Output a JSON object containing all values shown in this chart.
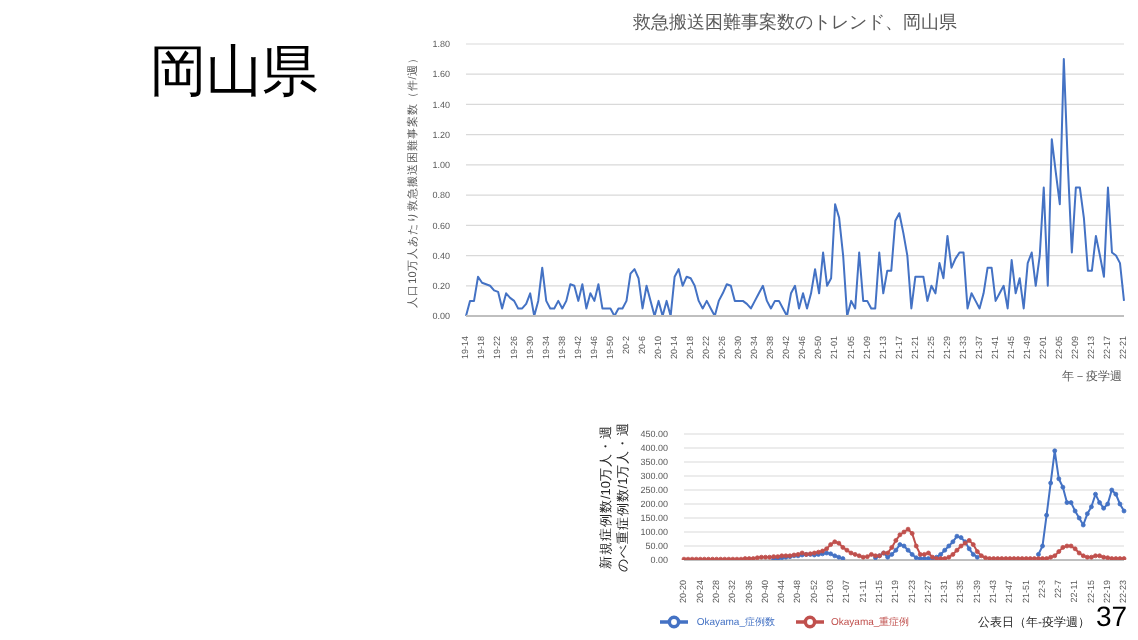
{
  "chart_data": [
    {
      "type": "line",
      "title": "救急搬送困難事案数のトレンド、岡山県",
      "xlabel": "年－疫学週",
      "ylabel": "人口10万人あたり救急搬送困難事案数（件/週）",
      "annotations": [
        "岡山県"
      ],
      "categories": [
        "19-14",
        null,
        null,
        null,
        "19-18",
        null,
        null,
        null,
        "19-22",
        null,
        null,
        null,
        "19-26",
        null,
        null,
        null,
        "19-30",
        null,
        null,
        null,
        "19-34",
        null,
        null,
        null,
        "19-38",
        null,
        null,
        null,
        "19-42",
        null,
        null,
        null,
        "19-46",
        null,
        null,
        null,
        "19-50",
        null,
        null,
        null,
        "20-2",
        null,
        null,
        null,
        "20-6",
        null,
        null,
        null,
        "20-10",
        null,
        null,
        null,
        "20-14",
        null,
        null,
        null,
        "20-18",
        null,
        null,
        null,
        "20-22",
        null,
        null,
        null,
        "20-26",
        null,
        null,
        null,
        "20-30",
        null,
        null,
        null,
        "20-34",
        null,
        null,
        null,
        "20-38",
        null,
        null,
        null,
        "20-42",
        null,
        null,
        null,
        "20-46",
        null,
        null,
        null,
        "20-50",
        null,
        null,
        null,
        "21-01",
        null,
        null,
        null,
        "21-05",
        null,
        null,
        null,
        "21-09",
        null,
        null,
        null,
        "21-13",
        null,
        null,
        null,
        "21-17",
        null,
        null,
        null,
        "21-21",
        null,
        null,
        null,
        "21-25",
        null,
        null,
        null,
        "21-29",
        null,
        null,
        null,
        "21-33",
        null,
        null,
        null,
        "21-37",
        null,
        null,
        null,
        "21-41",
        null,
        null,
        null,
        "21-45",
        null,
        null,
        null,
        "21-49",
        null,
        null,
        null,
        "22-01",
        null,
        null,
        null,
        "22-05",
        null,
        null,
        null,
        "22-09",
        null,
        null,
        null,
        "22-13",
        null,
        null,
        null,
        "22-17",
        null,
        null,
        null,
        "22-21"
      ],
      "series": [
        {
          "color": "#4472c4",
          "values": [
            0,
            0.1,
            0.1,
            0.26,
            0.22,
            0.21,
            0.2,
            0.17,
            0.16,
            0.05,
            0.15,
            0.12,
            0.1,
            0.05,
            0.05,
            0.08,
            0.15,
            0,
            0.1,
            0.32,
            0.1,
            0.05,
            0.05,
            0.1,
            0.05,
            0.1,
            0.21,
            0.2,
            0.1,
            0.21,
            0.05,
            0.15,
            0.1,
            0.21,
            0.05,
            0.05,
            0.05,
            0,
            0.05,
            0.05,
            0.1,
            0.28,
            0.31,
            0.25,
            0.05,
            0.2,
            0.1,
            0,
            0.1,
            0,
            0.1,
            0,
            0.26,
            0.31,
            0.2,
            0.26,
            0.25,
            0.2,
            0.1,
            0.05,
            0.1,
            0.05,
            0,
            0.1,
            0.15,
            0.21,
            0.2,
            0.1,
            0.1,
            0.1,
            0.08,
            0.05,
            0.1,
            0.15,
            0.2,
            0.1,
            0.05,
            0.1,
            0.1,
            0.05,
            0,
            0.15,
            0.2,
            0.05,
            0.15,
            0.05,
            0.15,
            0.31,
            0.15,
            0.42,
            0.2,
            0.25,
            0.74,
            0.65,
            0.4,
            0,
            0.1,
            0.05,
            0.42,
            0.1,
            0.1,
            0.05,
            0.05,
            0.42,
            0.15,
            0.3,
            0.3,
            0.63,
            0.68,
            0.55,
            0.4,
            0.05,
            0.26,
            0.26,
            0.26,
            0.1,
            0.2,
            0.15,
            0.35,
            0.25,
            0.53,
            0.32,
            0.38,
            0.42,
            0.42,
            0.05,
            0.15,
            0.1,
            0.05,
            0.15,
            0.32,
            0.32,
            0.1,
            0.15,
            0.2,
            0.05,
            0.37,
            0.15,
            0.25,
            0.05,
            0.35,
            0.42,
            0.2,
            0.4,
            0.85,
            0.2,
            1.17,
            0.95,
            0.74,
            1.7,
            1,
            0.42,
            0.85,
            0.85,
            0.65,
            0.3,
            0.3,
            0.53,
            0.4,
            0.26,
            0.85,
            0.42,
            0.4,
            0.35,
            0.1
          ]
        }
      ],
      "ylim": [
        0,
        1.8
      ],
      "yticks": [
        {
          "value": 0,
          "label": "0.00"
        },
        {
          "value": 0.2,
          "label": "0.20"
        },
        {
          "value": 0.4,
          "label": "0.40"
        },
        {
          "value": 0.6,
          "label": "0.60"
        },
        {
          "value": 0.8,
          "label": "0.80"
        },
        {
          "value": 1,
          "label": "1.00"
        },
        {
          "value": 1.2,
          "label": "1.20"
        },
        {
          "value": 1.4,
          "label": "1.40"
        },
        {
          "value": 1.6,
          "label": "1.60"
        },
        {
          "value": 1.8,
          "label": "1.80"
        }
      ],
      "grid": "y"
    },
    {
      "type": "line",
      "xlabel": "公表日（年-疫学週）",
      "ylabel": "新規症例数/10万人・週のべ重症例数/1万人・週",
      "annotations": [
        "37"
      ],
      "categories": [
        "20-20",
        null,
        null,
        null,
        "20-24",
        null,
        null,
        null,
        "20-28",
        null,
        null,
        null,
        "20-32",
        null,
        null,
        null,
        "20-36",
        null,
        null,
        null,
        "20-40",
        null,
        null,
        null,
        "20-44",
        null,
        null,
        null,
        "20-48",
        null,
        null,
        null,
        "20-52",
        null,
        null,
        null,
        "21-03",
        null,
        null,
        null,
        "21-07",
        null,
        null,
        null,
        "21-11",
        null,
        null,
        null,
        "21-15",
        null,
        null,
        null,
        "21-19",
        null,
        null,
        null,
        "21-23",
        null,
        null,
        null,
        "21-27",
        null,
        null,
        null,
        "21-31",
        null,
        null,
        null,
        "21-35",
        null,
        null,
        null,
        "21-39",
        null,
        null,
        null,
        "21-43",
        null,
        null,
        null,
        "21-47",
        null,
        null,
        null,
        "21-51",
        null,
        null,
        null,
        "22-3",
        null,
        null,
        null,
        "22-7",
        null,
        null,
        null,
        "22-11",
        null,
        null,
        null,
        "22-15",
        null,
        null,
        null,
        "22-19",
        null,
        null,
        null,
        "22-23"
      ],
      "series": [
        {
          "name": "Okayama_症例数",
          "color": "#4472c4",
          "values": [
            null,
            null,
            null,
            null,
            null,
            null,
            null,
            null,
            null,
            null,
            null,
            null,
            null,
            null,
            null,
            null,
            null,
            null,
            null,
            null,
            null,
            null,
            3,
            5,
            8,
            10,
            12,
            15,
            15,
            18,
            20,
            20,
            18,
            20,
            22,
            25,
            22,
            15,
            10,
            5,
            null,
            null,
            null,
            null,
            null,
            null,
            null,
            8,
            15,
            25,
            10,
            20,
            35,
            55,
            50,
            35,
            20,
            8,
            5,
            5,
            5,
            5,
            10,
            20,
            35,
            50,
            65,
            85,
            80,
            65,
            40,
            20,
            10,
            null,
            null,
            null,
            null,
            null,
            null,
            null,
            null,
            null,
            null,
            null,
            null,
            null,
            null,
            20,
            50,
            160,
            275,
            390,
            290,
            260,
            205,
            205,
            175,
            150,
            125,
            165,
            190,
            235,
            205,
            185,
            200,
            250,
            235,
            200,
            175
          ]
        },
        {
          "name": "Okayama_重症例",
          "color": "#c0504d",
          "values": [
            3,
            3,
            3,
            3,
            3,
            3,
            3,
            3,
            3,
            3,
            3,
            3,
            3,
            3,
            3,
            5,
            5,
            5,
            8,
            10,
            10,
            10,
            12,
            12,
            15,
            15,
            15,
            18,
            20,
            25,
            20,
            22,
            25,
            28,
            32,
            40,
            55,
            65,
            60,
            45,
            35,
            25,
            20,
            15,
            10,
            12,
            20,
            15,
            15,
            25,
            25,
            45,
            70,
            90,
            100,
            110,
            95,
            50,
            20,
            20,
            25,
            10,
            5,
            5,
            5,
            10,
            20,
            35,
            50,
            60,
            70,
            55,
            30,
            15,
            8,
            5,
            5,
            5,
            5,
            5,
            5,
            5,
            5,
            5,
            5,
            5,
            5,
            5,
            5,
            5,
            10,
            15,
            30,
            45,
            50,
            50,
            40,
            25,
            15,
            10,
            10,
            15,
            15,
            10,
            8,
            5,
            5,
            5,
            5
          ]
        }
      ],
      "ylim": [
        0,
        450
      ],
      "yticks": [
        {
          "value": 0,
          "label": "0.00"
        },
        {
          "value": 50,
          "label": "50.00"
        },
        {
          "value": 100,
          "label": "100.00"
        },
        {
          "value": 150,
          "label": "150.00"
        },
        {
          "value": 200,
          "label": "200.00"
        },
        {
          "value": 250,
          "label": "250.00"
        },
        {
          "value": 300,
          "label": "300.00"
        },
        {
          "value": 350,
          "label": "350.00"
        },
        {
          "value": 400,
          "label": "400.00"
        },
        {
          "value": 450,
          "label": "450.00"
        }
      ],
      "grid": "y",
      "legend": "bottom",
      "marker": "circle"
    }
  ]
}
